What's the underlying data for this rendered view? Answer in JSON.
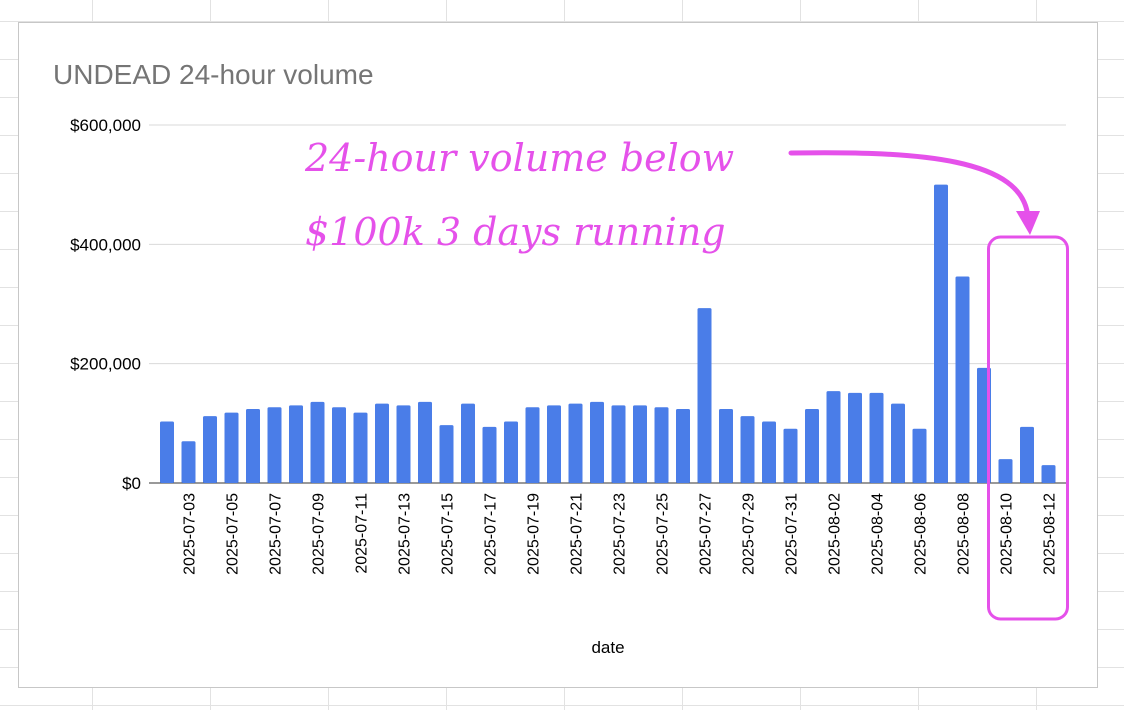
{
  "chart_data": {
    "type": "bar",
    "title": "UNDEAD 24-hour volume",
    "xlabel": "date",
    "ylabel": "",
    "ylim": [
      0,
      600000
    ],
    "yticks": [
      0,
      200000,
      400000,
      600000
    ],
    "ytick_labels": [
      "$0",
      "$200,000",
      "$400,000",
      "$600,000"
    ],
    "grid": true,
    "categories": [
      "2025-07-02",
      "2025-07-03",
      "2025-07-04",
      "2025-07-05",
      "2025-07-06",
      "2025-07-07",
      "2025-07-08",
      "2025-07-09",
      "2025-07-10",
      "2025-07-11",
      "2025-07-12",
      "2025-07-13",
      "2025-07-14",
      "2025-07-15",
      "2025-07-16",
      "2025-07-17",
      "2025-07-18",
      "2025-07-19",
      "2025-07-20",
      "2025-07-21",
      "2025-07-22",
      "2025-07-23",
      "2025-07-24",
      "2025-07-25",
      "2025-07-26",
      "2025-07-27",
      "2025-07-28",
      "2025-07-29",
      "2025-07-30",
      "2025-07-31",
      "2025-08-01",
      "2025-08-02",
      "2025-08-03",
      "2025-08-04",
      "2025-08-05",
      "2025-08-06",
      "2025-08-07",
      "2025-08-08",
      "2025-08-09",
      "2025-08-10",
      "2025-08-11",
      "2025-08-12"
    ],
    "xtick_labels": [
      "2025-07-03",
      "2025-07-05",
      "2025-07-07",
      "2025-07-09",
      "2025-07-11",
      "2025-07-13",
      "2025-07-15",
      "2025-07-17",
      "2025-07-19",
      "2025-07-21",
      "2025-07-23",
      "2025-07-25",
      "2025-07-27",
      "2025-07-29",
      "2025-07-31",
      "2025-08-02",
      "2025-08-04",
      "2025-08-06",
      "2025-08-08",
      "2025-08-10",
      "2025-08-12"
    ],
    "values": [
      103000,
      70000,
      112000,
      118000,
      124000,
      127000,
      130000,
      136000,
      127000,
      118000,
      133000,
      130000,
      136000,
      97000,
      133000,
      94000,
      103000,
      127000,
      130000,
      133000,
      136000,
      130000,
      130000,
      127000,
      124000,
      293000,
      124000,
      112000,
      103000,
      91000,
      124000,
      154000,
      151000,
      151000,
      133000,
      91000,
      500000,
      346000,
      193000,
      40000,
      94000,
      30000
    ],
    "bar_color": "#4a7de8",
    "annotation": {
      "lines": [
        "24-hour volume below",
        "$100k 3 days running"
      ],
      "highlight_categories": [
        "2025-08-10",
        "2025-08-11",
        "2025-08-12"
      ],
      "color": "#e551ea"
    }
  }
}
